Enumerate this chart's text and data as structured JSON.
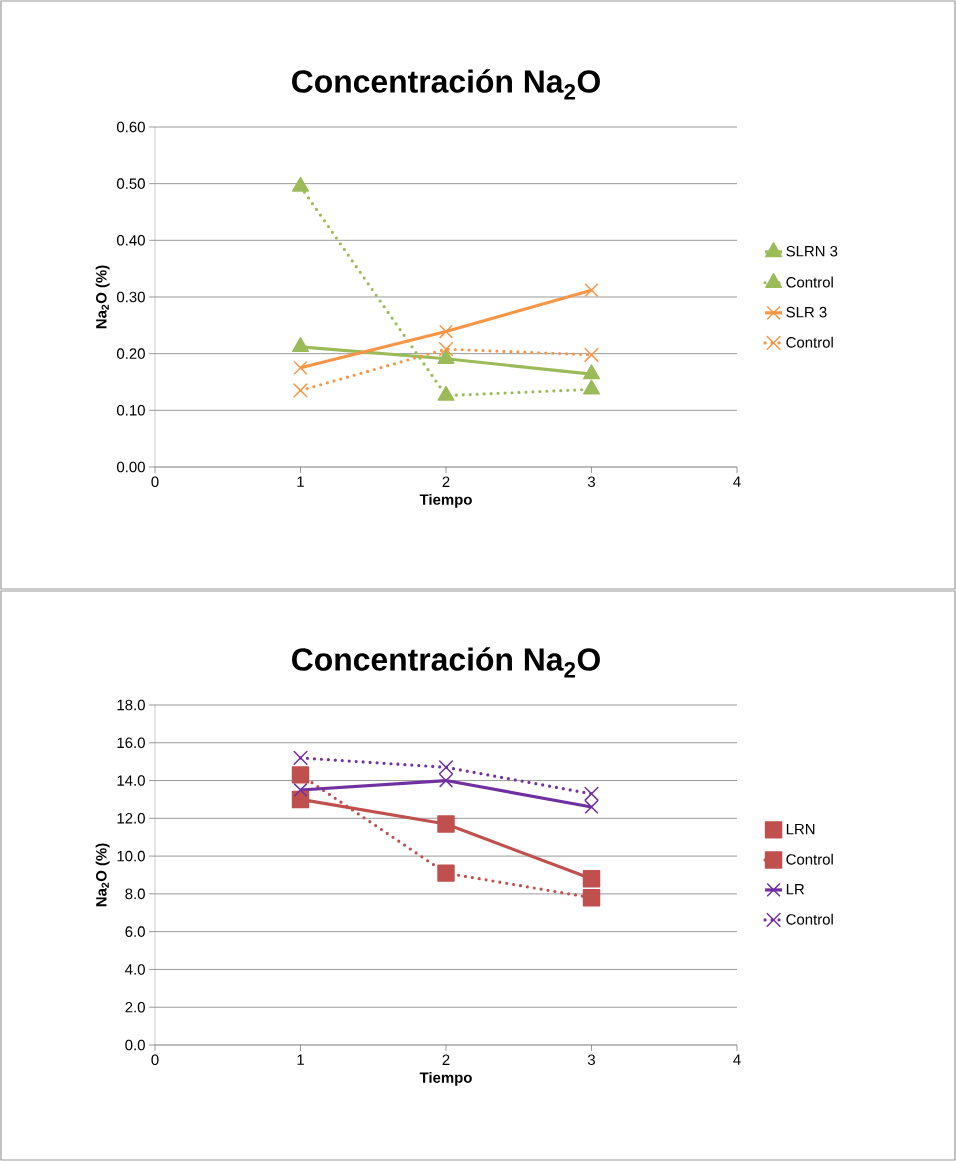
{
  "chart_data": [
    {
      "type": "line",
      "title": "Concentración Na$_{2}$O",
      "xlabel": "Tiempo",
      "ylabel": "Na$_{2}$O (%)",
      "x": [
        1,
        2,
        3
      ],
      "xlim": [
        0,
        4
      ],
      "xticks": [
        0,
        1,
        2,
        3,
        4
      ],
      "ylim": [
        0,
        0.6
      ],
      "yticks": [
        {
          "value": 0,
          "label": "0.00"
        },
        {
          "value": 0.1,
          "label": "0.10"
        },
        {
          "value": 0.2,
          "label": "0.20"
        },
        {
          "value": 0.3,
          "label": "0.30"
        },
        {
          "value": 0.4,
          "label": "0.40"
        },
        {
          "value": 0.5,
          "label": "0.50"
        },
        {
          "value": 0.6,
          "label": "0.60"
        }
      ],
      "grid": "y",
      "legend": "right",
      "series": [
        {
          "name": "SLRN 3",
          "color": "#9bbb59",
          "marker": "triangle",
          "line_style": "solid",
          "values": [
            0.212,
            0.191,
            0.164
          ]
        },
        {
          "name": "Control",
          "color": "#9bbb59",
          "marker": "triangle",
          "line_style": "dotted",
          "values": [
            0.495,
            0.126,
            0.137
          ]
        },
        {
          "name": "SLR 3",
          "color": "#f79646",
          "marker": "cross",
          "line_style": "solid",
          "values": [
            0.175,
            0.239,
            0.312
          ]
        },
        {
          "name": "Control",
          "color": "#f79646",
          "marker": "cross",
          "line_style": "dotted",
          "values": [
            0.135,
            0.208,
            0.198
          ]
        }
      ]
    },
    {
      "type": "line",
      "title": "Concentración Na$_{2}$O",
      "xlabel": "Tiempo",
      "ylabel": "Na$_{2}$O (%)",
      "x": [
        1,
        2,
        3
      ],
      "xlim": [
        0,
        4
      ],
      "xticks": [
        0,
        1,
        2,
        3,
        4
      ],
      "ylim": [
        0,
        18
      ],
      "yticks": [
        {
          "value": 0,
          "label": "0.0"
        },
        {
          "value": 2,
          "label": "2.0"
        },
        {
          "value": 4,
          "label": "4.0"
        },
        {
          "value": 6,
          "label": "6.0"
        },
        {
          "value": 8,
          "label": "8.0"
        },
        {
          "value": 10,
          "label": "10.0"
        },
        {
          "value": 12,
          "label": "12.0"
        },
        {
          "value": 14,
          "label": "14.0"
        },
        {
          "value": 16,
          "label": "16.0"
        },
        {
          "value": 18,
          "label": "18.0"
        }
      ],
      "grid": "y",
      "legend": "right",
      "series": [
        {
          "name": "LRN",
          "color": "#c0504d",
          "marker": "square",
          "line_style": "solid",
          "values": [
            13.0,
            11.7,
            8.8
          ]
        },
        {
          "name": "Control",
          "color": "#c0504d",
          "marker": "square",
          "line_style": "dotted",
          "values": [
            14.3,
            9.1,
            7.8
          ]
        },
        {
          "name": "LR",
          "color": "#7030a0",
          "marker": "cross",
          "line_style": "solid",
          "values": [
            13.5,
            14.0,
            12.6
          ]
        },
        {
          "name": "Control",
          "color": "#7030a0",
          "marker": "cross",
          "line_style": "dotted",
          "values": [
            15.2,
            14.7,
            13.3
          ]
        }
      ]
    }
  ]
}
